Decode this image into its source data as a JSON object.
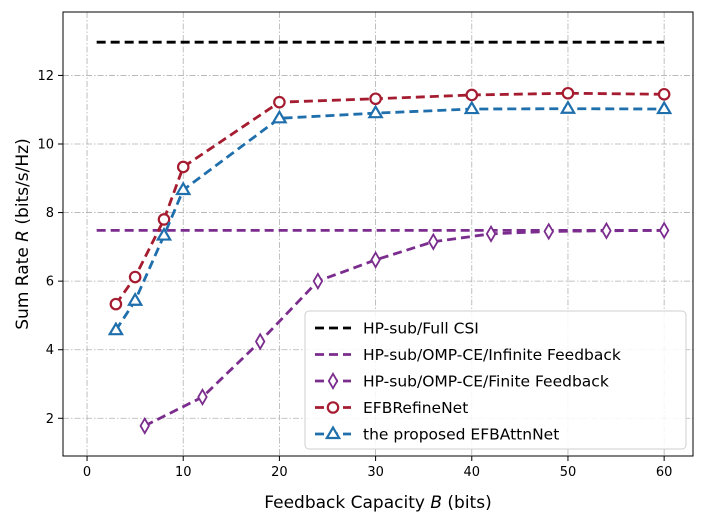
{
  "chart_data": {
    "type": "line",
    "title": "",
    "xlabel": {
      "prefix": "Feedback Capacity ",
      "var": "B",
      "suffix": " (bits)"
    },
    "ylabel": {
      "prefix": "Sum Rate ",
      "var": "R",
      "suffix": " (bits/s/Hz)"
    },
    "xlim": [
      -2.5,
      63
    ],
    "ylim": [
      0.9,
      13.85
    ],
    "xticks": [
      0,
      10,
      20,
      30,
      40,
      50,
      60
    ],
    "yticks": [
      2,
      4,
      6,
      8,
      10,
      12
    ],
    "grid": true,
    "legend_position": "lower-right",
    "series": [
      {
        "name": "HP-sub/Full CSI",
        "color": "#000000",
        "marker": "none",
        "x": [
          1,
          60
        ],
        "y": [
          12.97,
          12.97
        ]
      },
      {
        "name": "HP-sub/OMP-CE/Infinite Feedback",
        "color": "#7b2d8e",
        "marker": "none",
        "x": [
          1,
          60
        ],
        "y": [
          7.48,
          7.48
        ]
      },
      {
        "name": "HP-sub/OMP-CE/Finite Feedback",
        "color": "#7b2d8e",
        "marker": "diamond",
        "x": [
          6,
          12,
          18,
          24,
          30,
          36,
          42,
          48,
          54,
          60
        ],
        "y": [
          1.78,
          2.62,
          4.24,
          6.0,
          6.62,
          7.15,
          7.38,
          7.45,
          7.47,
          7.48
        ]
      },
      {
        "name": "EFBRefineNet",
        "color": "#a51c30",
        "marker": "circle",
        "x": [
          3,
          5,
          8,
          10,
          20,
          30,
          40,
          50,
          60
        ],
        "y": [
          5.33,
          6.12,
          7.8,
          9.33,
          11.22,
          11.32,
          11.43,
          11.48,
          11.45
        ]
      },
      {
        "name": "the proposed EFBAttnNet",
        "color": "#1f6fad",
        "marker": "triangle",
        "x": [
          3,
          5,
          8,
          10,
          20,
          30,
          40,
          50,
          60
        ],
        "y": [
          4.57,
          5.43,
          7.33,
          8.66,
          10.75,
          10.9,
          11.02,
          11.03,
          11.02
        ]
      }
    ]
  }
}
